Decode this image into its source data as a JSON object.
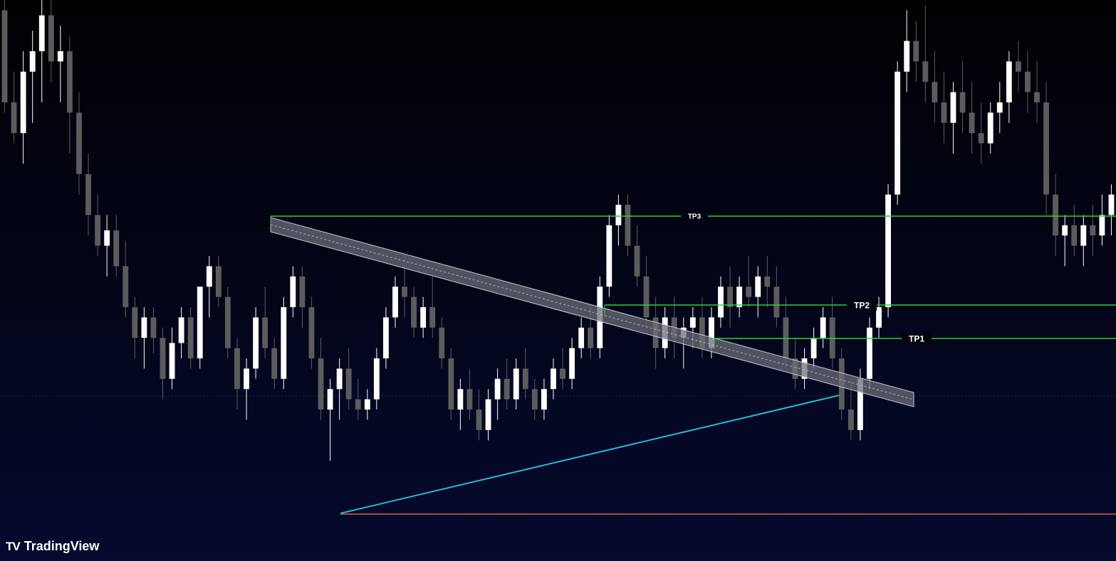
{
  "chart_data": {
    "type": "candlestick",
    "title": "",
    "xlabel": "",
    "ylabel": "",
    "ylim": [
      0,
      100
    ],
    "grid": false,
    "bull_color": "#ffffff",
    "bear_color": "#5c5c5c",
    "candles": [
      [
        98,
        100,
        78,
        80
      ],
      [
        80,
        86,
        72,
        74
      ],
      [
        74,
        90,
        68,
        86
      ],
      [
        86,
        94,
        76,
        90
      ],
      [
        90,
        100,
        80,
        97
      ],
      [
        97,
        100,
        84,
        88
      ],
      [
        88,
        95,
        80,
        90
      ],
      [
        90,
        93,
        70,
        78
      ],
      [
        78,
        82,
        62,
        66
      ],
      [
        66,
        70,
        54,
        58
      ],
      [
        58,
        62,
        50,
        52
      ],
      [
        52,
        58,
        46,
        55
      ],
      [
        55,
        58,
        46,
        48
      ],
      [
        48,
        53,
        38,
        40
      ],
      [
        40,
        42,
        30,
        34
      ],
      [
        34,
        40,
        28,
        38
      ],
      [
        38,
        40,
        31,
        34
      ],
      [
        34,
        36,
        22,
        26
      ],
      [
        26,
        36,
        24,
        33
      ],
      [
        33,
        40,
        30,
        38
      ],
      [
        38,
        40,
        28,
        30
      ],
      [
        30,
        44,
        28,
        44
      ],
      [
        44,
        50,
        38,
        48
      ],
      [
        48,
        50,
        40,
        42
      ],
      [
        42,
        44,
        30,
        32
      ],
      [
        32,
        34,
        20,
        24
      ],
      [
        24,
        30,
        18,
        28
      ],
      [
        28,
        40,
        26,
        38
      ],
      [
        38,
        44,
        30,
        32
      ],
      [
        32,
        34,
        24,
        26
      ],
      [
        26,
        42,
        24,
        40
      ],
      [
        40,
        48,
        38,
        46
      ],
      [
        46,
        48,
        36,
        40
      ],
      [
        40,
        42,
        28,
        30
      ],
      [
        30,
        34,
        18,
        20
      ],
      [
        20,
        26,
        10,
        24
      ],
      [
        24,
        30,
        18,
        28
      ],
      [
        28,
        32,
        20,
        22
      ],
      [
        22,
        26,
        18,
        20
      ],
      [
        20,
        24,
        18,
        22
      ],
      [
        22,
        32,
        20,
        30
      ],
      [
        30,
        40,
        28,
        38
      ],
      [
        38,
        46,
        36,
        44
      ],
      [
        44,
        50,
        38,
        42
      ],
      [
        42,
        44,
        34,
        36
      ],
      [
        36,
        42,
        34,
        40
      ],
      [
        40,
        46,
        34,
        36
      ],
      [
        36,
        38,
        28,
        30
      ],
      [
        30,
        32,
        18,
        20
      ],
      [
        20,
        26,
        16,
        24
      ],
      [
        24,
        28,
        18,
        20
      ],
      [
        20,
        24,
        14,
        16
      ],
      [
        16,
        24,
        14,
        22
      ],
      [
        22,
        28,
        18,
        26
      ],
      [
        26,
        30,
        20,
        22
      ],
      [
        22,
        30,
        20,
        28
      ],
      [
        28,
        32,
        22,
        24
      ],
      [
        24,
        26,
        18,
        20
      ],
      [
        20,
        26,
        18,
        24
      ],
      [
        24,
        30,
        22,
        28
      ],
      [
        28,
        32,
        24,
        26
      ],
      [
        26,
        34,
        24,
        32
      ],
      [
        32,
        38,
        30,
        36
      ],
      [
        36,
        40,
        30,
        32
      ],
      [
        32,
        46,
        30,
        44
      ],
      [
        44,
        58,
        42,
        56
      ],
      [
        56,
        62,
        52,
        60
      ],
      [
        60,
        62,
        50,
        52
      ],
      [
        52,
        56,
        44,
        46
      ],
      [
        46,
        50,
        36,
        38
      ],
      [
        38,
        42,
        28,
        32
      ],
      [
        32,
        40,
        30,
        38
      ],
      [
        38,
        42,
        30,
        34
      ],
      [
        34,
        38,
        28,
        36
      ],
      [
        36,
        40,
        32,
        38
      ],
      [
        38,
        42,
        30,
        32
      ],
      [
        32,
        40,
        30,
        38
      ],
      [
        38,
        46,
        36,
        44
      ],
      [
        44,
        48,
        36,
        40
      ],
      [
        40,
        46,
        38,
        44
      ],
      [
        44,
        50,
        40,
        42
      ],
      [
        42,
        48,
        38,
        46
      ],
      [
        46,
        50,
        40,
        44
      ],
      [
        44,
        48,
        36,
        38
      ],
      [
        38,
        42,
        28,
        30
      ],
      [
        30,
        34,
        24,
        26
      ],
      [
        26,
        32,
        24,
        30
      ],
      [
        30,
        36,
        28,
        34
      ],
      [
        34,
        40,
        32,
        38
      ],
      [
        38,
        42,
        28,
        30
      ],
      [
        30,
        32,
        18,
        20
      ],
      [
        20,
        26,
        14,
        16
      ],
      [
        16,
        28,
        14,
        26
      ],
      [
        26,
        38,
        24,
        36
      ],
      [
        36,
        42,
        34,
        40
      ],
      [
        40,
        64,
        38,
        62
      ],
      [
        62,
        88,
        60,
        86
      ],
      [
        86,
        98,
        82,
        92
      ],
      [
        92,
        96,
        84,
        88
      ],
      [
        88,
        99,
        80,
        84
      ],
      [
        84,
        90,
        76,
        80
      ],
      [
        80,
        86,
        72,
        76
      ],
      [
        76,
        84,
        70,
        82
      ],
      [
        82,
        88,
        74,
        78
      ],
      [
        78,
        84,
        70,
        74
      ],
      [
        74,
        80,
        68,
        72
      ],
      [
        72,
        80,
        70,
        78
      ],
      [
        78,
        84,
        74,
        80
      ],
      [
        80,
        90,
        76,
        88
      ],
      [
        88,
        92,
        82,
        86
      ],
      [
        86,
        90,
        78,
        82
      ],
      [
        82,
        88,
        76,
        80
      ],
      [
        80,
        84,
        58,
        62
      ],
      [
        62,
        66,
        50,
        54
      ],
      [
        54,
        58,
        48,
        56
      ],
      [
        56,
        60,
        50,
        52
      ],
      [
        52,
        58,
        48,
        56
      ],
      [
        56,
        60,
        50,
        54
      ],
      [
        54,
        62,
        52,
        58
      ],
      [
        58,
        64,
        54,
        62
      ]
    ],
    "levels": [
      {
        "name": "TP3",
        "color": "#2ed13a"
      },
      {
        "name": "TP2",
        "color": "#2ed13a"
      },
      {
        "name": "TP1",
        "color": "#2ed13a"
      },
      {
        "name": "",
        "color": "#e0574f"
      }
    ],
    "trendlines": [
      {
        "type": "descending-channel",
        "color": "#c9cbd6"
      },
      {
        "type": "ascending-support",
        "color": "#28b8d8"
      }
    ]
  },
  "logo": {
    "icon": "⫑",
    "text": "TradingView"
  }
}
